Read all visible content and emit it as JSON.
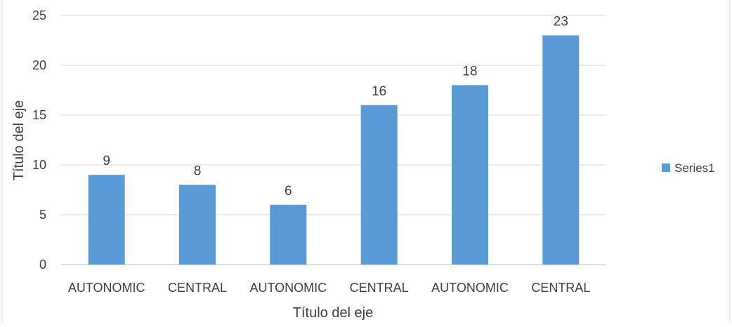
{
  "chart_data": {
    "type": "bar",
    "categories": [
      "AUTONOMIC",
      "CENTRAL",
      "AUTONOMIC",
      "CENTRAL",
      "AUTONOMIC",
      "CENTRAL"
    ],
    "series": [
      {
        "name": "Series1",
        "values": [
          9,
          8,
          6,
          16,
          18,
          23
        ],
        "color": "#5B9BD5"
      }
    ],
    "xlabel": "Título del eje",
    "ylabel": "Título del eje",
    "ylim": [
      0,
      25
    ],
    "yticks": [
      0,
      5,
      10,
      15,
      20,
      25
    ],
    "grid": true,
    "data_labels": true,
    "legend_position": "right"
  }
}
